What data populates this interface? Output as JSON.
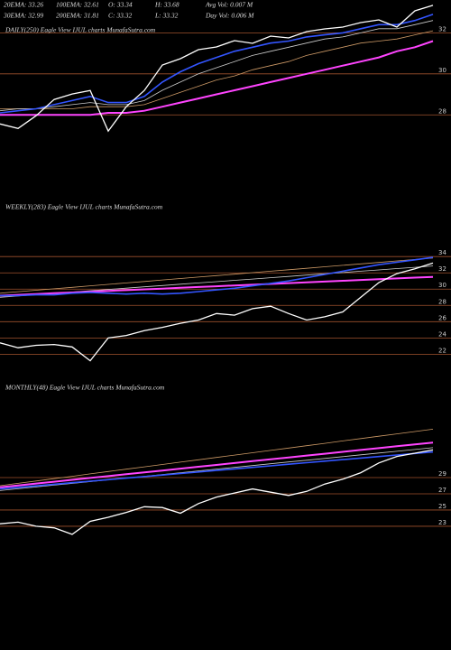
{
  "header": {
    "lines": [
      [
        "20EMA: 33.26",
        "100EMA: 32.61",
        "O: 33.34",
        "H: 33.68",
        "Avg Vol: 0.007 M"
      ],
      [
        "30EMA: 32.99",
        "200EMA: 31.81",
        "C: 33.32",
        "L: 33.32",
        "Day Vol: 0.006 M"
      ]
    ]
  },
  "chart_data": [
    {
      "type": "line",
      "title": "DAILY(250) Eagle View IJUL charts MunafaSutra.com",
      "categories": [
        null,
        null,
        null,
        null,
        null,
        null,
        null,
        null,
        null,
        null,
        null,
        null,
        null,
        null,
        null,
        null,
        null,
        null,
        null,
        null,
        null,
        null,
        null,
        null,
        null
      ],
      "ylim": [
        24.8,
        33.6
      ],
      "yticks": [
        32,
        30,
        28
      ],
      "grid": true,
      "grid_color": "#a0522d",
      "series": [
        {
          "color": "#cc9966",
          "values": [
            28.3,
            28.3,
            28.3,
            28.3,
            28.3,
            28.4,
            28.4,
            28.4,
            28.5,
            28.8,
            29.1,
            29.4,
            29.7,
            29.9,
            30.2,
            30.4,
            30.6,
            30.9,
            31.1,
            31.3,
            31.5,
            31.6,
            31.7,
            31.9,
            32.1
          ]
        },
        {
          "color": "#cccccc",
          "values": [
            28.2,
            28.3,
            28.3,
            28.4,
            28.5,
            28.6,
            28.5,
            28.5,
            28.7,
            29.2,
            29.6,
            30.0,
            30.3,
            30.6,
            30.9,
            31.1,
            31.3,
            31.5,
            31.7,
            31.8,
            32.0,
            32.2,
            32.2,
            32.4,
            32.6
          ]
        },
        {
          "color": "#ff44ff",
          "values": [
            28.0,
            28.0,
            28.0,
            28.0,
            28.0,
            28.0,
            28.1,
            28.1,
            28.2,
            28.4,
            28.6,
            28.8,
            29.0,
            29.2,
            29.4,
            29.6,
            29.8,
            30.0,
            30.2,
            30.4,
            30.6,
            30.8,
            31.1,
            31.3,
            31.6
          ]
        },
        {
          "color": "#3355ff",
          "values": [
            28.1,
            28.2,
            28.3,
            28.5,
            28.7,
            28.9,
            28.6,
            28.6,
            28.9,
            29.6,
            30.1,
            30.5,
            30.8,
            31.1,
            31.3,
            31.5,
            31.6,
            31.8,
            31.9,
            32.0,
            32.2,
            32.4,
            32.4,
            32.6,
            32.9
          ]
        },
        {
          "color": "#ffffff",
          "values": [
            27.56,
            27.34,
            27.96,
            28.75,
            29.02,
            29.19,
            27.21,
            28.4,
            29.19,
            30.43,
            30.74,
            31.18,
            31.31,
            31.62,
            31.49,
            31.84,
            31.75,
            32.06,
            32.19,
            32.28,
            32.5,
            32.63,
            32.28,
            33.07,
            33.34
          ]
        }
      ]
    },
    {
      "type": "line",
      "title": "WEEKLY(283) Eagle View IJUL charts MunafaSutra.com",
      "categories": [
        null,
        null,
        null,
        null,
        null,
        null,
        null,
        null,
        null,
        null,
        null,
        null,
        null,
        null,
        null,
        null,
        null,
        null,
        null,
        null,
        null,
        null,
        null,
        null,
        null
      ],
      "ylim": [
        20.6,
        38.9
      ],
      "yticks": [
        34,
        32,
        30,
        28,
        26,
        24,
        22
      ],
      "grid": true,
      "grid_color": "#a0522d",
      "series": [
        {
          "color": "#cc9966",
          "values": [
            29.5,
            29.68,
            29.86,
            30.04,
            30.22,
            30.4,
            30.58,
            30.76,
            30.94,
            31.12,
            31.3,
            31.48,
            31.66,
            31.84,
            32.02,
            32.2,
            32.38,
            32.56,
            32.74,
            32.92,
            33.1,
            33.28,
            33.46,
            33.64,
            33.82
          ]
        },
        {
          "color": "#cccccc",
          "values": [
            29.0,
            29.16,
            29.32,
            29.48,
            29.64,
            29.8,
            29.96,
            30.12,
            30.28,
            30.44,
            30.6,
            30.76,
            30.92,
            31.08,
            31.24,
            31.4,
            31.56,
            31.72,
            31.88,
            32.04,
            32.2,
            32.36,
            32.52,
            32.68,
            32.84
          ]
        },
        {
          "color": "#ff44ff",
          "values": [
            29.2,
            29.3,
            29.39,
            29.49,
            29.58,
            29.68,
            29.78,
            29.87,
            29.97,
            30.06,
            30.16,
            30.26,
            30.35,
            30.45,
            30.54,
            30.64,
            30.74,
            30.83,
            30.93,
            31.02,
            31.12,
            31.22,
            31.31,
            31.41,
            31.5
          ]
        },
        {
          "color": "#3355ff",
          "values": [
            29.2,
            29.2,
            29.3,
            29.3,
            29.5,
            29.6,
            29.5,
            29.4,
            29.5,
            29.4,
            29.5,
            29.7,
            29.9,
            30.1,
            30.4,
            30.7,
            31.0,
            31.4,
            31.8,
            32.2,
            32.6,
            33.0,
            33.3,
            33.6,
            33.9
          ]
        },
        {
          "color": "#ffffff",
          "values": [
            23.4,
            22.8,
            23.1,
            23.2,
            22.9,
            21.2,
            24.0,
            24.3,
            24.9,
            25.3,
            25.8,
            26.2,
            27.0,
            26.8,
            27.6,
            27.9,
            27.0,
            26.2,
            26.6,
            27.2,
            29.0,
            30.8,
            31.9,
            32.5,
            33.2
          ]
        }
      ]
    },
    {
      "type": "line",
      "title": "MONTHLY(48) Eagle View IJUL charts MunafaSutra.com",
      "categories": [
        null,
        null,
        null,
        null,
        null,
        null,
        null,
        null,
        null,
        null,
        null,
        null,
        null,
        null,
        null,
        null,
        null,
        null,
        null,
        null,
        null,
        null,
        null,
        null,
        null
      ],
      "ylim": [
        21.1,
        38.9
      ],
      "yticks": [
        29,
        27,
        25,
        23
      ],
      "grid": true,
      "grid_color": "#a0522d",
      "series": [
        {
          "color": "#cc9966",
          "values": [
            28.0,
            28.29,
            28.58,
            28.87,
            29.16,
            29.45,
            29.74,
            30.03,
            30.32,
            30.61,
            30.9,
            31.19,
            31.48,
            31.77,
            32.06,
            32.35,
            32.64,
            32.93,
            33.22,
            33.51,
            33.8,
            34.09,
            34.38,
            34.67,
            34.96
          ]
        },
        {
          "color": "#cccccc",
          "values": [
            27.4,
            27.62,
            27.84,
            28.06,
            28.28,
            28.5,
            28.72,
            28.94,
            29.16,
            29.38,
            29.6,
            29.82,
            30.04,
            30.26,
            30.48,
            30.7,
            30.92,
            31.14,
            31.36,
            31.58,
            31.8,
            32.02,
            32.24,
            32.46,
            32.68
          ]
        },
        {
          "color": "#ff44ff",
          "values": [
            27.8,
            28.03,
            28.26,
            28.49,
            28.72,
            28.95,
            29.18,
            29.41,
            29.64,
            29.87,
            30.1,
            30.33,
            30.56,
            30.79,
            31.02,
            31.25,
            31.48,
            31.71,
            31.94,
            32.17,
            32.4,
            32.63,
            32.86,
            33.09,
            33.32
          ]
        },
        {
          "color": "#3355ff",
          "values": [
            27.6,
            27.79,
            27.98,
            28.17,
            28.36,
            28.55,
            28.74,
            28.93,
            29.12,
            29.31,
            29.5,
            29.69,
            29.88,
            30.07,
            30.26,
            30.45,
            30.64,
            30.83,
            31.02,
            31.21,
            31.4,
            31.59,
            31.78,
            31.97,
            32.16
          ]
        },
        {
          "color": "#ffffff",
          "values": [
            23.3,
            23.5,
            23.0,
            22.8,
            22.0,
            23.6,
            24.1,
            24.7,
            25.4,
            25.3,
            24.6,
            25.8,
            26.6,
            27.1,
            27.6,
            27.2,
            26.8,
            27.3,
            28.2,
            28.8,
            29.6,
            30.8,
            31.6,
            32.0,
            32.4
          ]
        }
      ]
    }
  ]
}
